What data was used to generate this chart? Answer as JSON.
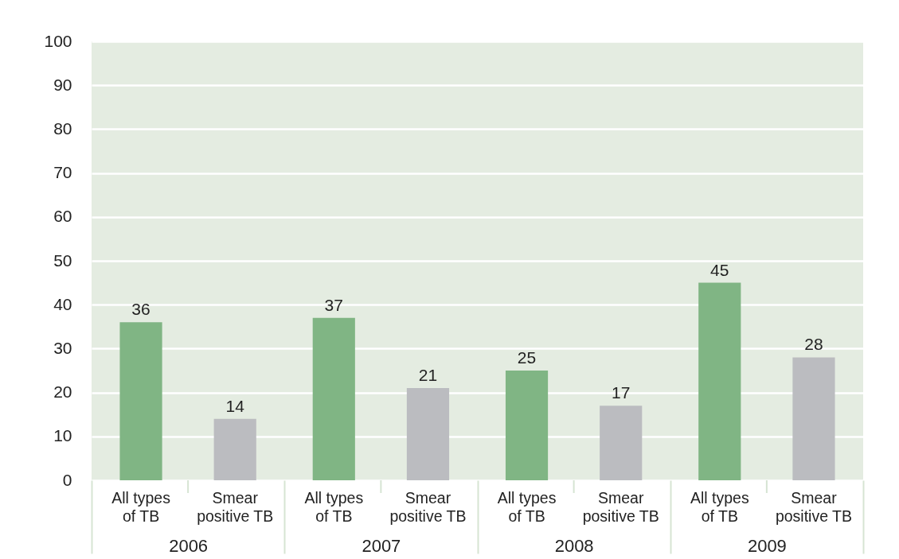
{
  "chart_data": {
    "type": "bar",
    "categories": [
      "2006",
      "2007",
      "2008",
      "2009"
    ],
    "series": [
      {
        "name": "All types of TB",
        "color": "#80b584",
        "values": [
          36,
          37,
          25,
          45
        ]
      },
      {
        "name": "Smear positive TB",
        "color": "#bbbcc0",
        "values": [
          14,
          21,
          17,
          28
        ]
      }
    ],
    "ylim": [
      0,
      100
    ],
    "yticks": [
      0,
      10,
      20,
      30,
      40,
      50,
      60,
      70,
      80,
      90,
      100
    ],
    "grid": "y",
    "data_labels": true
  }
}
